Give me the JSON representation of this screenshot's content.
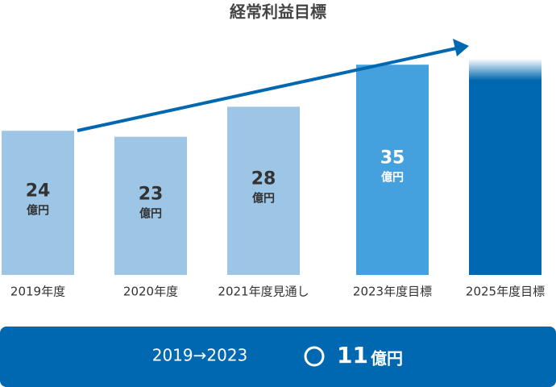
{
  "chart_data": {
    "type": "bar",
    "title": "経常利益目標",
    "categories": [
      "2019年度",
      "2020年度",
      "2021年度見通し",
      "2023年度目標",
      "2025年度目標"
    ],
    "values": [
      24,
      23,
      28,
      35,
      36
    ],
    "value_labels": [
      "24",
      "23",
      "28",
      "35",
      null
    ],
    "unit": "億円",
    "colors": [
      "#9dc5e6",
      "#9dc5e6",
      "#9dc5e6",
      "#45a1de",
      "#0068b0"
    ],
    "ylim": [
      0,
      40
    ]
  },
  "banner": {
    "period": "2019→2023",
    "growth": "11",
    "growth_unit": "億円"
  }
}
